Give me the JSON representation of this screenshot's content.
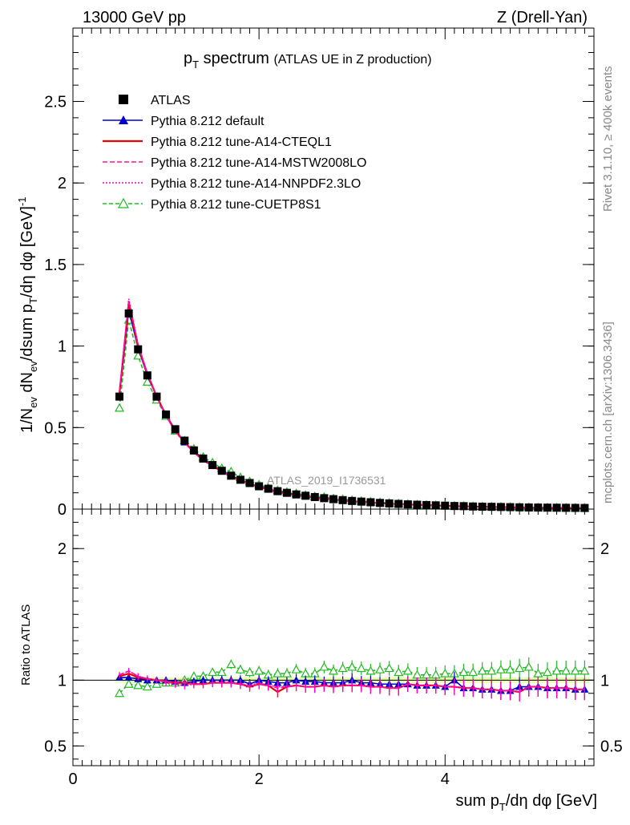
{
  "header": {
    "left": "13000 GeV pp",
    "right": "Z (Drell-Yan)"
  },
  "title": {
    "main": "p",
    "main_sub": "T",
    "main_rest": " spectrum",
    "paren": "(ATLAS UE in Z production)"
  },
  "side_labels": {
    "rivet": "Rivet 3.1.10, ≥ 400k events",
    "mcplots": "mcplots.cern.ch [arXiv:1306.3436]"
  },
  "watermark": "ATLAS_2019_I1736531",
  "axes": {
    "ylabel_top": "1/N_ev dN_ev/dsum p_T/dη dφ [GeV]^-1",
    "ylabel_ratio": "Ratio to ATLAS",
    "xlabel": "sum p_T/dη dφ [GeV]"
  },
  "chart_data": [
    {
      "type": "scatter",
      "panel": "main",
      "x": [
        0.5,
        0.6,
        0.7,
        0.8,
        0.9,
        1.0,
        1.1,
        1.2,
        1.3,
        1.4,
        1.5,
        1.6,
        1.7,
        1.8,
        1.9,
        2.0,
        2.1,
        2.2,
        2.3,
        2.4,
        2.5,
        2.6,
        2.7,
        2.8,
        2.9,
        3.0,
        3.1,
        3.2,
        3.3,
        3.4,
        3.5,
        3.6,
        3.7,
        3.8,
        3.9,
        4.0,
        4.1,
        4.2,
        4.3,
        4.4,
        4.5,
        4.6,
        4.7,
        4.8,
        4.9,
        5.0,
        5.1,
        5.2,
        5.3,
        5.4,
        5.5
      ],
      "xlim": [
        0,
        5.6
      ],
      "ylim": [
        0,
        2.95
      ],
      "yticks": [
        0,
        0.5,
        1,
        1.5,
        2,
        2.5
      ],
      "xticks": [
        0,
        2,
        4
      ],
      "series": [
        {
          "name": "ATLAS",
          "color": "#000000",
          "style": "data",
          "values": [
            0.69,
            1.2,
            0.98,
            0.82,
            0.69,
            0.58,
            0.49,
            0.42,
            0.36,
            0.31,
            0.27,
            0.235,
            0.205,
            0.18,
            0.16,
            0.14,
            0.125,
            0.11,
            0.1,
            0.09,
            0.082,
            0.074,
            0.067,
            0.061,
            0.055,
            0.05,
            0.046,
            0.042,
            0.038,
            0.035,
            0.032,
            0.029,
            0.027,
            0.025,
            0.023,
            0.021,
            0.019,
            0.018,
            0.016,
            0.015,
            0.014,
            0.013,
            0.012,
            0.011,
            0.01,
            0.0095,
            0.009,
            0.0085,
            0.008,
            0.0075,
            0.007
          ]
        },
        {
          "name": "Pythia 8.212 default",
          "color": "#0000cc",
          "style": "triangle-solid",
          "values": [
            0.7,
            1.22,
            0.99,
            0.82,
            0.69,
            0.58,
            0.485,
            0.41,
            0.355,
            0.31,
            0.27,
            0.235,
            0.205,
            0.18,
            0.155,
            0.14,
            0.124,
            0.108,
            0.098,
            0.09,
            0.081,
            0.073,
            0.066,
            0.06,
            0.054,
            0.05,
            0.045,
            0.041,
            0.037,
            0.034,
            0.031,
            0.028,
            0.026,
            0.024,
            0.022,
            0.02,
            0.019,
            0.017,
            0.015,
            0.014,
            0.013,
            0.012,
            0.011,
            0.0105,
            0.0095,
            0.009,
            0.0085,
            0.008,
            0.0075,
            0.007,
            0.0065
          ]
        },
        {
          "name": "Pythia 8.212 tune-A14-CTEQL1",
          "color": "#ee0000",
          "style": "solid",
          "values": [
            0.71,
            1.26,
            1.0,
            0.83,
            0.69,
            0.575,
            0.48,
            0.41,
            0.35,
            0.3,
            0.265,
            0.23,
            0.2,
            0.175,
            0.152,
            0.136,
            0.12,
            0.1,
            0.095,
            0.086,
            0.078,
            0.07,
            0.064,
            0.058,
            0.053,
            0.048,
            0.044,
            0.04,
            0.036,
            0.033,
            0.03,
            0.028,
            0.026,
            0.024,
            0.022,
            0.02,
            0.018,
            0.017,
            0.015,
            0.014,
            0.013,
            0.012,
            0.011,
            0.01,
            0.0095,
            0.009,
            0.0085,
            0.008,
            0.0075,
            0.007,
            0.0065
          ]
        },
        {
          "name": "Pythia 8.212 tune-A14-MSTW2008LO",
          "color": "#ff1493",
          "style": "dashed",
          "values": [
            0.72,
            1.28,
            1.01,
            0.83,
            0.69,
            0.575,
            0.48,
            0.41,
            0.35,
            0.3,
            0.265,
            0.23,
            0.2,
            0.175,
            0.152,
            0.136,
            0.12,
            0.103,
            0.095,
            0.086,
            0.078,
            0.07,
            0.064,
            0.058,
            0.053,
            0.048,
            0.044,
            0.04,
            0.036,
            0.033,
            0.03,
            0.028,
            0.026,
            0.024,
            0.022,
            0.02,
            0.018,
            0.017,
            0.015,
            0.014,
            0.013,
            0.012,
            0.011,
            0.01,
            0.0095,
            0.009,
            0.0085,
            0.008,
            0.0075,
            0.007,
            0.0065
          ]
        },
        {
          "name": "Pythia 8.212 tune-A14-NNPDF2.3LO",
          "color": "#ff00cc",
          "style": "dotted",
          "values": [
            0.72,
            1.29,
            1.01,
            0.83,
            0.69,
            0.57,
            0.475,
            0.405,
            0.35,
            0.3,
            0.265,
            0.23,
            0.2,
            0.175,
            0.153,
            0.137,
            0.12,
            0.105,
            0.095,
            0.086,
            0.078,
            0.07,
            0.064,
            0.058,
            0.053,
            0.048,
            0.044,
            0.04,
            0.036,
            0.033,
            0.03,
            0.028,
            0.026,
            0.024,
            0.022,
            0.02,
            0.018,
            0.017,
            0.015,
            0.014,
            0.013,
            0.012,
            0.011,
            0.01,
            0.0095,
            0.009,
            0.0085,
            0.008,
            0.0075,
            0.007,
            0.0065
          ]
        },
        {
          "name": "Pythia 8.212 tune-CUETP8S1",
          "color": "#22bb22",
          "style": "triangle-open-dashed",
          "values": [
            0.62,
            1.16,
            0.94,
            0.78,
            0.67,
            0.57,
            0.48,
            0.42,
            0.37,
            0.32,
            0.285,
            0.25,
            0.23,
            0.195,
            0.17,
            0.15,
            0.13,
            0.115,
            0.105,
            0.097,
            0.086,
            0.078,
            0.074,
            0.065,
            0.06,
            0.055,
            0.05,
            0.045,
            0.041,
            0.038,
            0.034,
            0.031,
            0.028,
            0.026,
            0.024,
            0.022,
            0.02,
            0.019,
            0.017,
            0.016,
            0.015,
            0.014,
            0.013,
            0.012,
            0.011,
            0.01,
            0.0095,
            0.009,
            0.0085,
            0.008,
            0.0075
          ]
        }
      ]
    },
    {
      "type": "line",
      "panel": "ratio",
      "ylim": [
        0.35,
        2.3
      ],
      "yticks": [
        0.5,
        1,
        2
      ],
      "ylabel": "Ratio to ATLAS",
      "series": [
        {
          "name": "Pythia 8.212 default",
          "values": [
            1.02,
            1.02,
            1.01,
            1.0,
            1.0,
            1.0,
            0.99,
            0.98,
            0.99,
            1.0,
            1.0,
            1.0,
            1.0,
            1.0,
            0.97,
            1.0,
            0.99,
            0.98,
            0.98,
            1.0,
            0.99,
            0.99,
            0.98,
            0.98,
            0.98,
            1.0,
            0.98,
            0.98,
            0.97,
            0.97,
            0.97,
            0.97,
            0.96,
            0.96,
            0.96,
            0.95,
            1.0,
            0.94,
            0.94,
            0.93,
            0.93,
            0.92,
            0.92,
            0.95,
            0.95,
            0.95,
            0.94,
            0.94,
            0.94,
            0.93,
            0.93
          ]
        },
        {
          "name": "Pythia 8.212 tune-A14-CTEQL1",
          "values": [
            1.03,
            1.05,
            1.02,
            1.01,
            1.0,
            0.99,
            0.98,
            0.98,
            0.97,
            0.97,
            0.98,
            0.98,
            0.98,
            0.97,
            0.95,
            0.97,
            0.96,
            0.91,
            0.95,
            0.96,
            0.95,
            0.95,
            0.96,
            0.95,
            0.96,
            0.96,
            0.96,
            0.95,
            0.95,
            0.94,
            0.94,
            0.97,
            0.96,
            0.96,
            0.96,
            0.95,
            0.95,
            0.94,
            0.94,
            0.93,
            0.93,
            0.92,
            0.92,
            0.91,
            0.95,
            0.95,
            0.94,
            0.94,
            0.94,
            0.93,
            0.93
          ]
        },
        {
          "name": "Pythia 8.212 tune-A14-MSTW2008LO",
          "values": [
            1.04,
            1.07,
            1.03,
            1.01,
            1.0,
            0.99,
            0.98,
            0.98,
            0.97,
            0.97,
            0.98,
            0.98,
            0.98,
            0.97,
            0.95,
            0.97,
            0.96,
            0.94,
            0.95,
            0.96,
            0.95,
            0.95,
            0.96,
            0.95,
            0.96,
            0.96,
            0.96,
            0.95,
            0.95,
            0.94,
            0.94,
            0.97,
            0.96,
            0.96,
            0.96,
            0.95,
            0.95,
            0.94,
            0.94,
            0.93,
            0.93,
            0.92,
            0.92,
            0.91,
            0.95,
            0.95,
            0.94,
            0.94,
            0.94,
            0.93,
            0.93
          ]
        },
        {
          "name": "Pythia 8.212 tune-A14-NNPDF2.3LO",
          "values": [
            1.04,
            1.07,
            1.03,
            1.01,
            1.0,
            0.98,
            0.97,
            0.96,
            0.97,
            0.97,
            0.98,
            0.98,
            0.98,
            0.97,
            0.96,
            0.98,
            0.96,
            0.95,
            0.95,
            0.96,
            0.95,
            0.95,
            0.96,
            0.95,
            0.96,
            0.96,
            0.96,
            0.95,
            0.95,
            0.94,
            0.94,
            0.97,
            0.96,
            0.96,
            0.96,
            0.95,
            0.95,
            0.94,
            0.94,
            0.93,
            0.93,
            0.92,
            0.92,
            0.91,
            0.95,
            0.95,
            0.94,
            0.94,
            0.94,
            0.93,
            0.93
          ]
        },
        {
          "name": "Pythia 8.212 tune-CUETP8S1",
          "values": [
            0.9,
            0.97,
            0.96,
            0.95,
            0.97,
            0.98,
            0.98,
            1.0,
            1.03,
            1.03,
            1.06,
            1.06,
            1.12,
            1.08,
            1.06,
            1.07,
            1.04,
            1.05,
            1.05,
            1.08,
            1.05,
            1.05,
            1.1,
            1.07,
            1.09,
            1.1,
            1.09,
            1.07,
            1.08,
            1.09,
            1.06,
            1.07,
            1.04,
            1.04,
            1.04,
            1.05,
            1.05,
            1.06,
            1.06,
            1.07,
            1.07,
            1.08,
            1.08,
            1.09,
            1.1,
            1.05,
            1.06,
            1.07,
            1.07,
            1.07,
            1.07
          ]
        }
      ]
    }
  ]
}
